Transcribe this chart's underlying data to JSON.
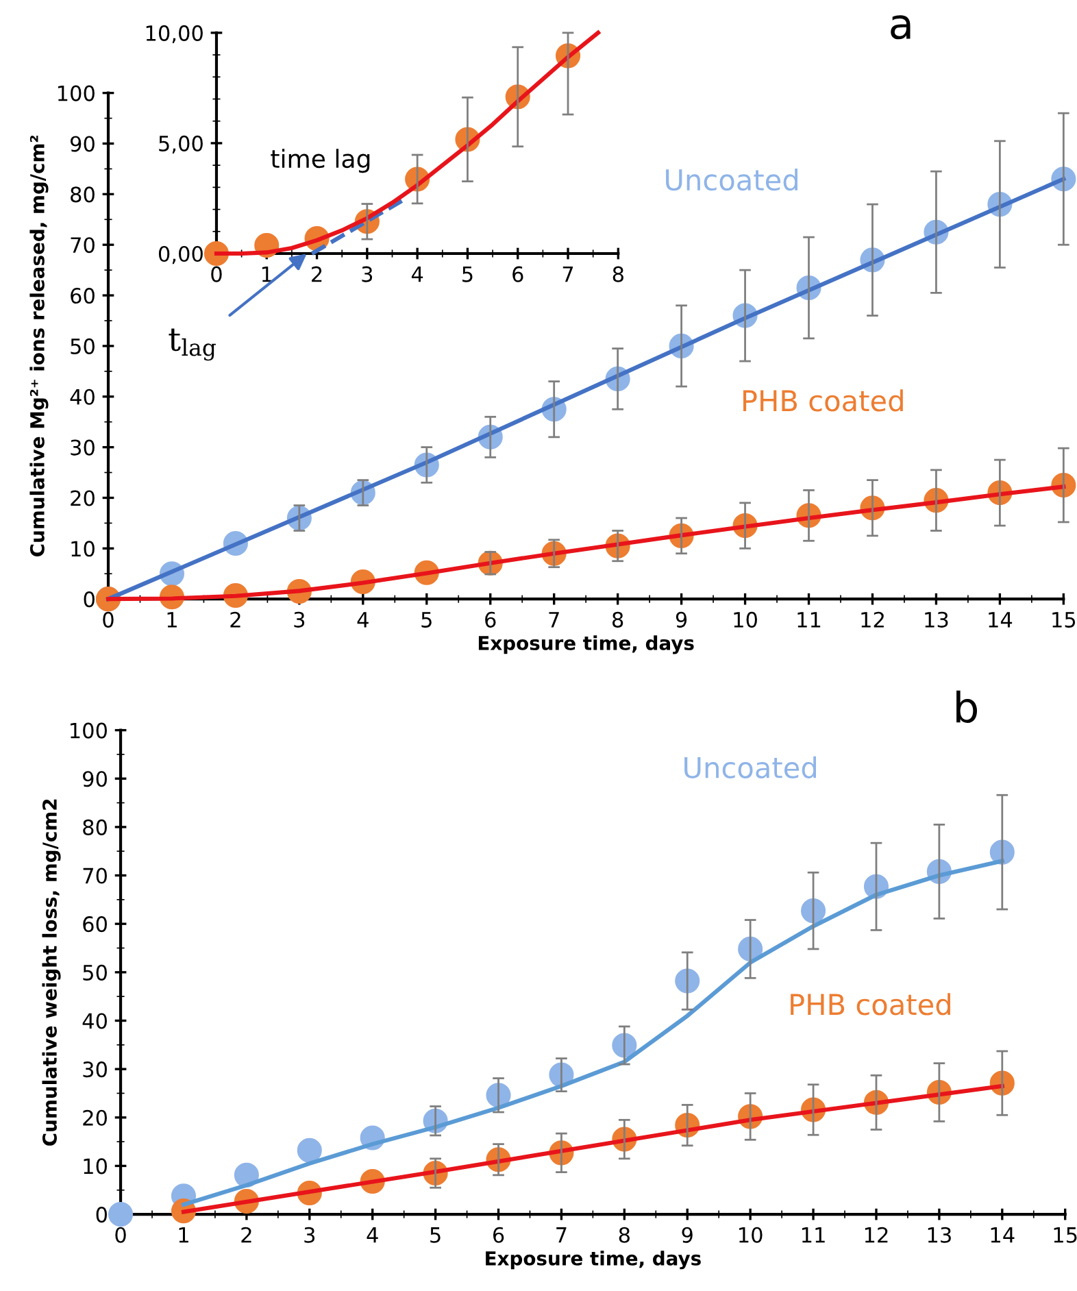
{
  "chart_data": [
    {
      "type": "line",
      "xlabel": "Exposure time, days",
      "ylabel": "Cumulative Mg²⁺ ions released, mg/cm²",
      "xlim": [
        0,
        15
      ],
      "ylim": [
        0,
        100
      ],
      "xticks": [
        0,
        1,
        2,
        3,
        4,
        5,
        6,
        7,
        8,
        9,
        10,
        11,
        12,
        13,
        14,
        15
      ],
      "yticks": [
        0,
        10,
        20,
        30,
        40,
        50,
        60,
        70,
        80,
        90,
        100
      ],
      "grid": false,
      "legend": false,
      "annotations": [
        "a"
      ],
      "series": [
        {
          "type": "scatter",
          "name": "Uncoated",
          "color": "#8fb4e8",
          "marker": "circle",
          "x": [
            0,
            1,
            2,
            3,
            4,
            5,
            6,
            7,
            8,
            9,
            10,
            11,
            12,
            13,
            14,
            15
          ],
          "values": [
            0,
            5,
            11,
            16,
            21,
            26.5,
            32,
            37.5,
            43.5,
            50,
            56,
            61.5,
            67,
            72.5,
            78,
            83
          ],
          "errors": [
            null,
            null,
            null,
            2.5,
            2.5,
            3.5,
            4,
            5.5,
            6,
            8,
            9,
            10,
            11,
            12,
            12.5,
            13
          ]
        },
        {
          "type": "scatter",
          "name": "PHB coated",
          "color": "#ed7d31",
          "marker": "circle",
          "x": [
            0,
            1,
            2,
            3,
            4,
            5,
            6,
            7,
            8,
            9,
            10,
            11,
            12,
            13,
            14,
            15
          ],
          "values": [
            0,
            0.4,
            0.7,
            1.5,
            3.4,
            5.2,
            7.1,
            9,
            10.5,
            12.5,
            14.5,
            16.5,
            18,
            19.5,
            21,
            22.5
          ],
          "errors": [
            null,
            null,
            null,
            null,
            null,
            null,
            2.2,
            2.7,
            3,
            3.5,
            4.5,
            5,
            5.5,
            6,
            6.5,
            7.3
          ]
        },
        {
          "color": "#4472c4",
          "line_style": "solid",
          "x": [
            0,
            5,
            10,
            15
          ],
          "values": [
            0,
            27,
            55.5,
            83
          ]
        },
        {
          "color": "#e8141b",
          "line_style": "solid",
          "x": [
            0,
            1,
            2,
            3,
            4,
            5,
            6,
            7,
            8,
            9,
            10,
            11,
            12,
            13,
            14,
            15
          ],
          "values": [
            0,
            0.1,
            0.6,
            1.6,
            3.2,
            5.1,
            7.1,
            9,
            10.8,
            12.6,
            14.3,
            16,
            17.6,
            19.1,
            20.7,
            22.2
          ]
        }
      ]
    },
    {
      "type": "line",
      "xlim": [
        0,
        8
      ],
      "ylim": [
        0,
        10
      ],
      "xticks": [
        0,
        1,
        2,
        3,
        4,
        5,
        6,
        7,
        8
      ],
      "yticks": [
        {
          "value": 0,
          "label": "0,00"
        },
        {
          "value": 5,
          "label": "5,00"
        },
        {
          "value": 10,
          "label": "10,00"
        }
      ],
      "grid": false,
      "legend": false,
      "annotations": [
        "time lag",
        {
          "text": "t$_{lag}$",
          "x": 1.8,
          "y": 0
        }
      ],
      "series": [
        {
          "type": "scatter",
          "color": "#ed7d31",
          "marker": "circle",
          "x": [
            0,
            1,
            2,
            3,
            4,
            5,
            6,
            7
          ],
          "values": [
            0,
            0.37,
            0.68,
            1.45,
            3.37,
            5.17,
            7.1,
            8.96
          ],
          "errors": [
            null,
            null,
            null,
            0.8,
            1.1,
            1.9,
            2.25,
            [
              6.3,
              10
            ]
          ]
        },
        {
          "color": "#4472c4",
          "line_style": "dashed",
          "x": [
            1.9,
            3.7
          ],
          "values": [
            0,
            2.4
          ]
        },
        {
          "color": "#e8141b",
          "line_style": "solid",
          "x": [
            0,
            0.5,
            1,
            1.5,
            2,
            2.5,
            3,
            3.5,
            4,
            4.5,
            5,
            5.5,
            6,
            6.5,
            7,
            7.6
          ],
          "values": [
            0,
            0,
            0.05,
            0.25,
            0.6,
            1.05,
            1.6,
            2.3,
            3.1,
            4,
            4.9,
            5.85,
            6.9,
            7.9,
            8.9,
            10
          ]
        }
      ]
    },
    {
      "type": "line",
      "xlabel": "Exposure time, days",
      "ylabel": "Cumulative weight loss, mg/cm2",
      "xlim": [
        0,
        15
      ],
      "ylim": [
        0,
        100
      ],
      "xticks": [
        0,
        1,
        2,
        3,
        4,
        5,
        6,
        7,
        8,
        9,
        10,
        11,
        12,
        13,
        14,
        15
      ],
      "yticks": [
        0,
        10,
        20,
        30,
        40,
        50,
        60,
        70,
        80,
        90,
        100
      ],
      "grid": false,
      "legend": false,
      "annotations": [
        "b"
      ],
      "series": [
        {
          "type": "scatter",
          "name": "Uncoated",
          "color": "#8fb4e8",
          "marker": "circle",
          "x": [
            0,
            1,
            2,
            3,
            4,
            5,
            6,
            7,
            8,
            9,
            10,
            11,
            12,
            13,
            14
          ],
          "values": [
            0,
            3.8,
            8.1,
            13.2,
            15.8,
            19.3,
            24.6,
            28.8,
            34.9,
            48.2,
            54.8,
            62.7,
            67.7,
            70.8,
            74.8
          ],
          "errors": [
            null,
            null,
            null,
            null,
            null,
            3,
            3.5,
            3.4,
            3.9,
            5.9,
            6,
            7.9,
            9,
            9.7,
            11.8
          ]
        },
        {
          "type": "scatter",
          "name": "PHB coated",
          "color": "#ed7d31",
          "marker": "circle",
          "x": [
            1,
            2,
            3,
            4,
            5,
            6,
            7,
            8,
            9,
            10,
            11,
            12,
            13,
            14
          ],
          "values": [
            0.7,
            2.7,
            4.4,
            6.8,
            8.5,
            11.3,
            12.7,
            15.5,
            18.4,
            20.2,
            21.6,
            23.1,
            25.2,
            27.1
          ],
          "errors": [
            null,
            null,
            null,
            null,
            3,
            3.2,
            4,
            4,
            4.2,
            4.8,
            5.2,
            5.6,
            6,
            6.6
          ]
        },
        {
          "color": "#5b9bd5",
          "line_style": "solid",
          "x": [
            1,
            2,
            3,
            4,
            5,
            6,
            7,
            8,
            9,
            10,
            11,
            12,
            13,
            14
          ],
          "values": [
            2,
            6,
            10.5,
            14.5,
            18,
            22,
            26.5,
            31.5,
            41,
            52,
            59.5,
            66,
            70,
            73
          ]
        },
        {
          "color": "#e8141b",
          "line_style": "solid",
          "x": [
            1,
            5,
            10,
            14
          ],
          "values": [
            0.5,
            8.8,
            19.5,
            26.5
          ]
        }
      ]
    }
  ]
}
